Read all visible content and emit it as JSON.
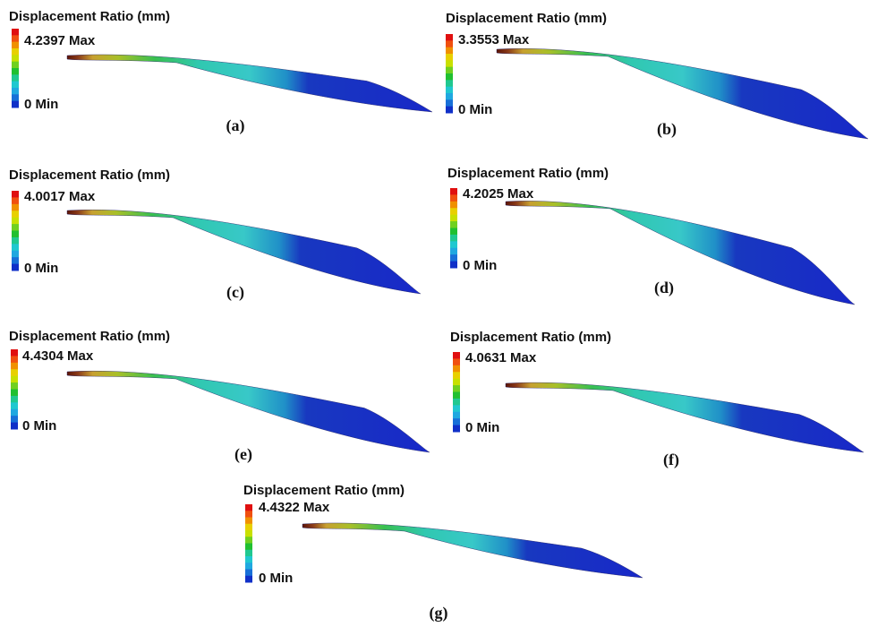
{
  "panels": [
    {
      "title": "Displacement Ratio (mm)",
      "max": "4.2397 Max",
      "min": "0 Min",
      "caption": "(a)"
    },
    {
      "title": "Displacement Ratio (mm)",
      "max": "3.3553 Max",
      "min": "0 Min",
      "caption": "(b)"
    },
    {
      "title": "Displacement Ratio (mm)",
      "max": "4.0017 Max",
      "min": "0 Min",
      "caption": "(c)"
    },
    {
      "title": "Displacement Ratio (mm)",
      "max": "4.2025 Max",
      "min": "0 Min",
      "caption": "(d)"
    },
    {
      "title": "Displacement Ratio (mm)",
      "max": "4.4304 Max",
      "min": "0 Min",
      "caption": "(e)"
    },
    {
      "title": "Displacement Ratio (mm)",
      "max": "4.0631 Max",
      "min": "0 Min",
      "caption": "(f)"
    },
    {
      "title": "Displacement Ratio (mm)",
      "max": "4.4322 Max",
      "min": "0 Min",
      "caption": "(g)"
    }
  ]
}
